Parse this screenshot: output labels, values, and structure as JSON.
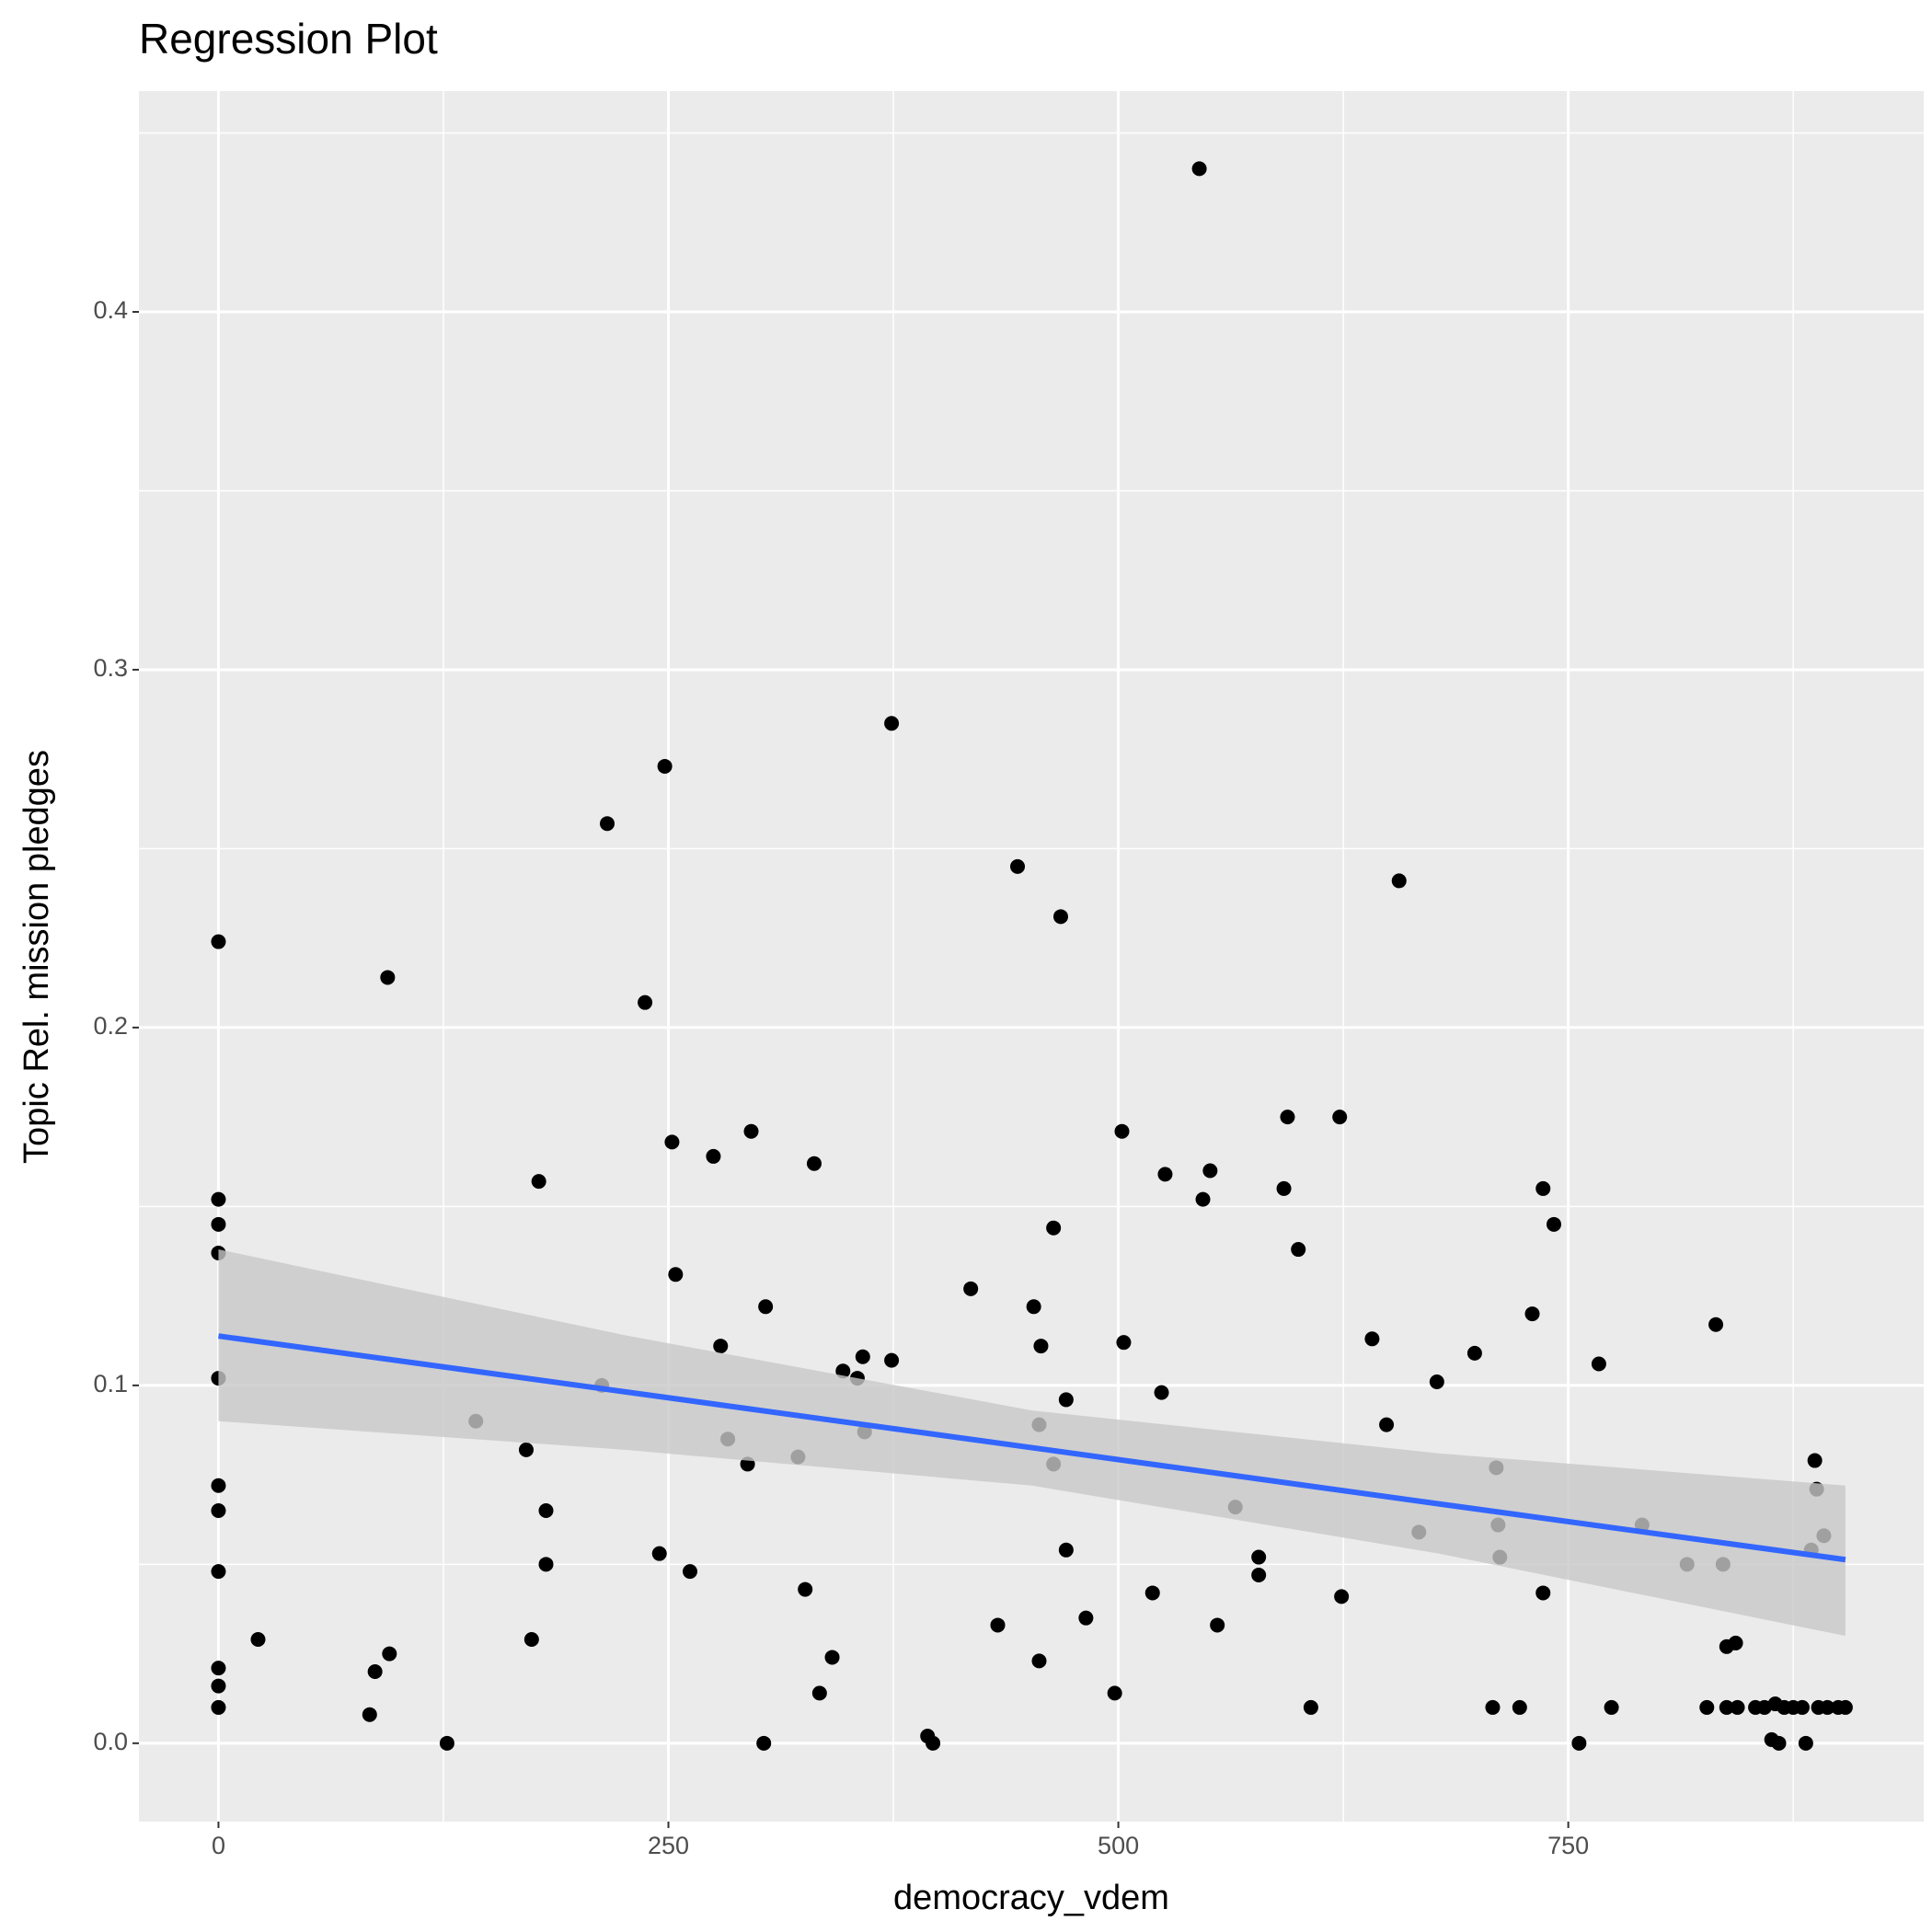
{
  "chart_data": {
    "type": "scatter",
    "title": "Regression Plot",
    "x_label": "democracy_vdem",
    "y_label": "Topic Rel. mission pledges",
    "x": [
      0,
      0,
      0,
      0,
      0,
      0,
      0,
      0,
      0,
      0,
      0,
      22,
      94,
      84,
      87,
      95,
      127,
      143,
      171,
      178,
      174,
      182,
      182,
      216,
      213,
      237,
      248,
      245,
      252,
      254,
      262,
      275,
      279,
      283,
      294,
      296,
      304,
      303,
      322,
      326,
      331,
      334,
      341,
      347,
      355,
      358,
      359,
      374,
      374,
      394,
      397,
      418,
      433,
      444,
      453,
      456,
      457,
      456,
      464,
      468,
      464,
      471,
      471,
      482,
      498,
      502,
      503,
      519,
      524,
      526,
      545,
      547,
      551,
      555,
      565,
      578,
      578,
      592,
      594,
      600,
      607,
      623,
      624,
      641,
      649,
      656,
      667,
      677,
      698,
      708,
      710,
      711,
      712,
      723,
      730,
      736,
      736,
      742,
      756,
      767,
      774,
      791,
      816,
      827,
      832,
      836,
      838,
      843,
      838,
      844,
      854,
      859,
      863,
      865,
      867,
      870,
      875,
      880,
      882,
      885,
      887,
      888,
      889,
      892,
      894,
      900,
      904
    ],
    "y": [
      0.224,
      0.152,
      0.145,
      0.137,
      0.102,
      0.072,
      0.065,
      0.048,
      0.021,
      0.016,
      0.01,
      0.029,
      0.214,
      0.008,
      0.02,
      0.025,
      0.0,
      0.09,
      0.082,
      0.157,
      0.029,
      0.065,
      0.05,
      0.257,
      0.1,
      0.207,
      0.273,
      0.053,
      0.168,
      0.131,
      0.048,
      0.164,
      0.111,
      0.085,
      0.078,
      0.171,
      0.122,
      0.0,
      0.08,
      0.043,
      0.162,
      0.014,
      0.024,
      0.104,
      0.102,
      0.108,
      0.087,
      0.285,
      0.107,
      0.002,
      0.0,
      0.127,
      0.033,
      0.245,
      0.122,
      0.089,
      0.111,
      0.023,
      0.144,
      0.231,
      0.078,
      0.096,
      0.054,
      0.035,
      0.014,
      0.171,
      0.112,
      0.042,
      0.098,
      0.159,
      0.44,
      0.152,
      0.16,
      0.033,
      0.066,
      0.052,
      0.047,
      0.155,
      0.175,
      0.138,
      0.01,
      0.175,
      0.041,
      0.113,
      0.089,
      0.241,
      0.059,
      0.101,
      0.109,
      0.01,
      0.077,
      0.061,
      0.052,
      0.01,
      0.12,
      0.155,
      0.042,
      0.145,
      0.0,
      0.106,
      0.01,
      0.061,
      0.05,
      0.01,
      0.117,
      0.05,
      0.027,
      0.028,
      0.01,
      0.01,
      0.01,
      0.01,
      0.001,
      0.011,
      0.0,
      0.01,
      0.01,
      0.01,
      0.0,
      0.054,
      0.079,
      0.071,
      0.01,
      0.058,
      0.01,
      0.01,
      0.01
    ],
    "color": "#000000",
    "regression": {
      "x": [
        0,
        226,
        452,
        678,
        904
      ],
      "y": [
        0.1138,
        0.0982,
        0.0826,
        0.0669,
        0.0513
      ],
      "lower": [
        0.09,
        0.082,
        0.072,
        0.053,
        0.03
      ],
      "upper": [
        0.138,
        0.114,
        0.093,
        0.081,
        0.072
      ],
      "color": "#3366ff",
      "band_color": "#c8c8c8"
    },
    "xlim": [
      -44.2,
      947.5
    ],
    "ylim": [
      -0.0219,
      0.4617
    ],
    "xticks": [
      0,
      250,
      500,
      750
    ],
    "yticks": [
      {
        "value": 0,
        "label": "0.0"
      },
      0.1,
      0.2,
      0.3,
      0.4
    ],
    "minor_xticks": [
      125,
      375,
      625,
      875
    ],
    "minor_yticks": [
      0.05,
      0.15,
      0.25,
      0.35,
      0.45
    ],
    "grid": true
  }
}
